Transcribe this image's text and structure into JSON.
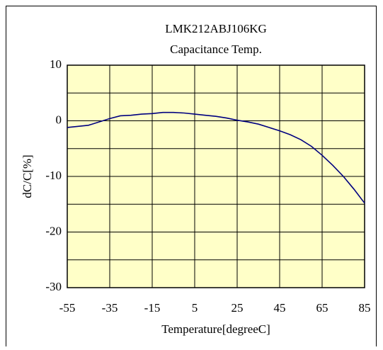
{
  "chart_data": {
    "type": "line",
    "title": "LMK212ABJ106KG",
    "subtitle": "Capacitance Temp.",
    "x_label": "Temperature[degreeC]",
    "y_label": "dC/C[%]",
    "x": [
      -55,
      -45,
      -35,
      -30,
      -25,
      -20,
      -15,
      -10,
      -5,
      0,
      5,
      10,
      15,
      20,
      25,
      30,
      35,
      40,
      45,
      50,
      55,
      60,
      65,
      70,
      75,
      80,
      85
    ],
    "series": [
      {
        "name": "LMK212ABJ106KG",
        "color": "#000080",
        "values": [
          -1.2,
          -0.8,
          0.4,
          0.9,
          1.0,
          1.2,
          1.3,
          1.5,
          1.5,
          1.4,
          1.2,
          1.0,
          0.8,
          0.5,
          0.1,
          -0.2,
          -0.6,
          -1.2,
          -1.8,
          -2.5,
          -3.4,
          -4.6,
          -6.2,
          -8.0,
          -10.0,
          -12.3,
          -14.8
        ]
      }
    ],
    "xlim": [
      -55,
      85
    ],
    "xticks": [
      -55,
      -35,
      -15,
      5,
      25,
      45,
      65,
      85
    ],
    "ylim": [
      -30,
      10
    ],
    "yticks": [
      10,
      0,
      -10,
      -20,
      -30
    ],
    "y_minor_grid": [
      5,
      -5,
      -15,
      -25
    ],
    "grid": true,
    "plot_background": "#ffffc8"
  }
}
